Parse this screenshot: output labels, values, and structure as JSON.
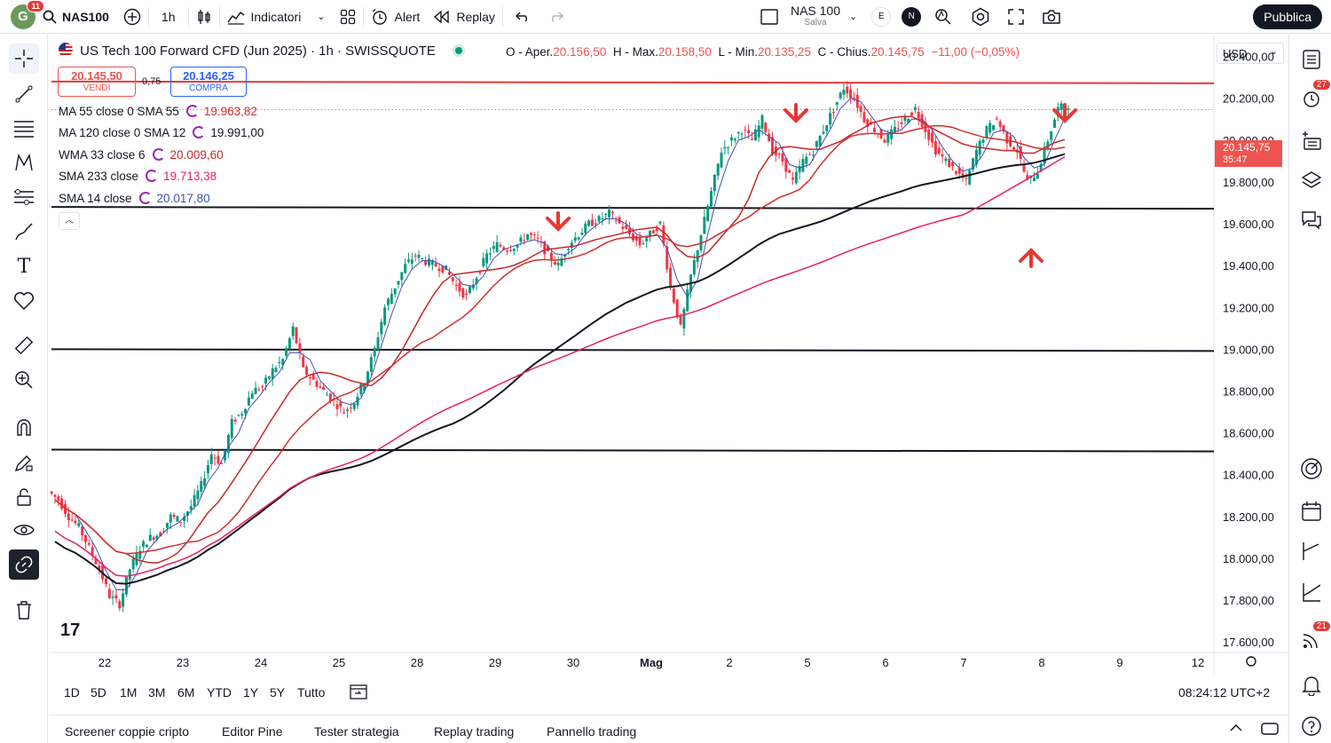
{
  "topbar": {
    "avatar_letter": "G",
    "avatar_badge": "11",
    "symbol": "NAS100",
    "interval": "1h",
    "indicators_label": "Indicatori",
    "alert_label": "Alert",
    "replay_label": "Replay",
    "layout_name": "NAS 100",
    "layout_status": "Salva",
    "e_label": "E",
    "n_label": "N",
    "publish_label": "Pubblica"
  },
  "legend": {
    "title": "US Tech 100 Forward CFD (Jun 2025) · 1h · SWISSQUOTE",
    "o_label": "O - Aper.",
    "o_value": "20.156,50",
    "h_label": "H - Max.",
    "h_value": "20.158,50",
    "l_label": "L - Min.",
    "l_value": "20.135,25",
    "c_label": "C - Chius.",
    "c_value": "20.145,75",
    "change": "−11,00 (−0,05%)",
    "sell_price": "20.145,50",
    "sell_label": "VENDI",
    "spread": "0,75",
    "buy_price": "20.146,25",
    "buy_label": "COMPRA"
  },
  "indicators": [
    {
      "label": "MA 55 close 0 SMA 55",
      "value": "19.963,82",
      "color": "#d32f2f"
    },
    {
      "label": "MA 120 close 0 SMA 12",
      "value": "19.991,00",
      "color": "#131722"
    },
    {
      "label": "WMA 33 close 6",
      "value": "20.009,60",
      "color": "#c62828"
    },
    {
      "label": "SMA 233 close",
      "value": "19.713,38",
      "color": "#e91e63"
    },
    {
      "label": "SMA 14 close",
      "value": "20.017,80",
      "color": "#3f51b5"
    }
  ],
  "price_axis": {
    "currency": "USD",
    "labels": [
      "20.400,00",
      "20.200,00",
      "20.000,00",
      "19.800,00",
      "19.600,00",
      "19.400,00",
      "19.200,00",
      "19.000,00",
      "18.800,00",
      "18.600,00",
      "18.400,00",
      "18.200,00",
      "18.000,00",
      "17.800,00",
      "17.600,00"
    ],
    "last_price": "20.145,75",
    "countdown": "35:47"
  },
  "time_axis": {
    "labels": [
      "22",
      "23",
      "24",
      "25",
      "28",
      "29",
      "30",
      "Mag",
      "2",
      "5",
      "6",
      "7",
      "8",
      "9",
      "12"
    ]
  },
  "ranges": [
    "1D",
    "5D",
    "1M",
    "3M",
    "6M",
    "YTD",
    "1Y",
    "5Y",
    "Tutto"
  ],
  "clock": "08:24:12 UTC+2",
  "bottom_tabs": [
    "Screener coppie cripto",
    "Editor Pine",
    "Tester strategia",
    "Replay trading",
    "Pannello trading"
  ],
  "right_badges": {
    "alerts": "27",
    "notifications": "21"
  },
  "watermark": "17",
  "chart_data": {
    "type": "candlestick",
    "y_axis_range": [
      17550,
      20500
    ],
    "horizontal_levels": [
      20280,
      19680,
      19000,
      18520
    ],
    "close_series": [
      18280,
      18200,
      18150,
      18050,
      17950,
      17820,
      17780,
      17950,
      18050,
      18100,
      18120,
      18200,
      18180,
      18250,
      18350,
      18500,
      18450,
      18650,
      18700,
      18800,
      18820,
      18900,
      18950,
      19100,
      18900,
      18850,
      18800,
      18750,
      18700,
      18750,
      18850,
      19000,
      19200,
      19300,
      19400,
      19450,
      19420,
      19400,
      19380,
      19300,
      19250,
      19350,
      19450,
      19500,
      19480,
      19500,
      19550,
      19520,
      19450,
      19400,
      19500,
      19550,
      19600,
      19620,
      19650,
      19600,
      19550,
      19500,
      19550,
      19600,
      19300,
      19100,
      19350,
      19550,
      19750,
      19950,
      20000,
      20050,
      20000,
      20100,
      19950,
      19900,
      19800,
      19900,
      19950,
      20050,
      20150,
      20250,
      20200,
      20100,
      20050,
      20000,
      20050,
      20100,
      20150,
      20050,
      19950,
      19900,
      19850,
      19800,
      19950,
      20050,
      20100,
      20000,
      19950,
      19800,
      19850,
      20000,
      20150,
      20170
    ],
    "annotations": [
      "down-arrow near 19.700 on 30",
      "down-arrow near 20.280 on 5",
      "down-arrow near 20.280 on 8",
      "up-arrow near 19.650 on 8"
    ]
  }
}
